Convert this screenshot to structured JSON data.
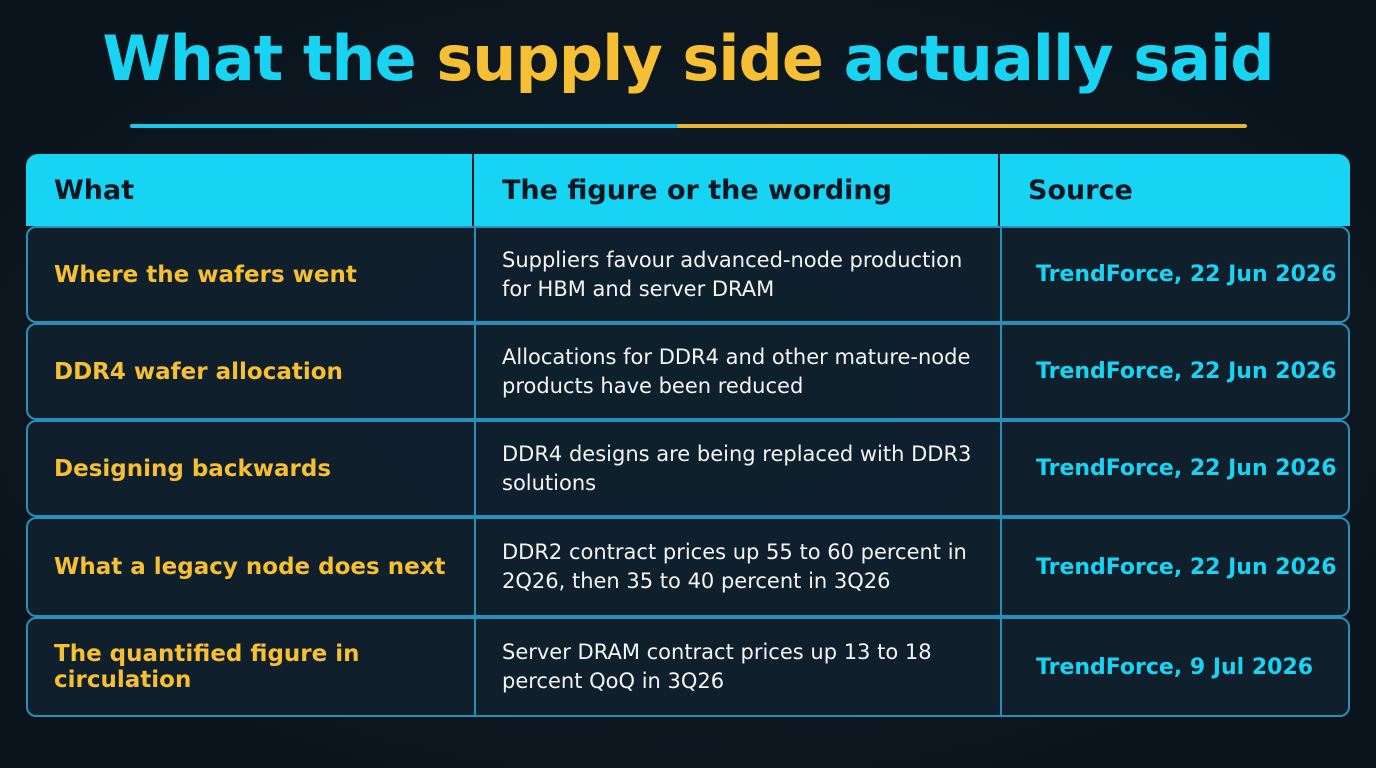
{
  "header": {
    "title": {
      "parts": [
        "What the",
        "supply side",
        "actually said"
      ]
    }
  },
  "table": {
    "columns": [
      "What",
      "The figure or the wording",
      "Source"
    ],
    "rows": [
      [
        "Where the wafers went",
        "Suppliers favour advanced-node production for HBM and server DRAM",
        "TrendForce, 22 Jun 2026"
      ],
      [
        "DDR4 wafer allocation",
        "Allocations for DDR4 and other mature-node products have been reduced",
        "TrendForce, 22 Jun 2026"
      ],
      [
        "Designing backwards",
        "DDR4 designs are being replaced with DDR3 solutions",
        "TrendForce, 22 Jun 2026"
      ],
      [
        "What a legacy node does next",
        "DDR2 contract prices up 55 to 60 percent in 2Q26, then 35 to 40 percent in 3Q26",
        "TrendForce, 22 Jun 2026"
      ],
      [
        "The quantified figure in circulation",
        "Server DRAM contract prices up 13 to 18 percent QoQ in 3Q26",
        "TrendForce, 9 Jul 2026"
      ]
    ]
  }
}
